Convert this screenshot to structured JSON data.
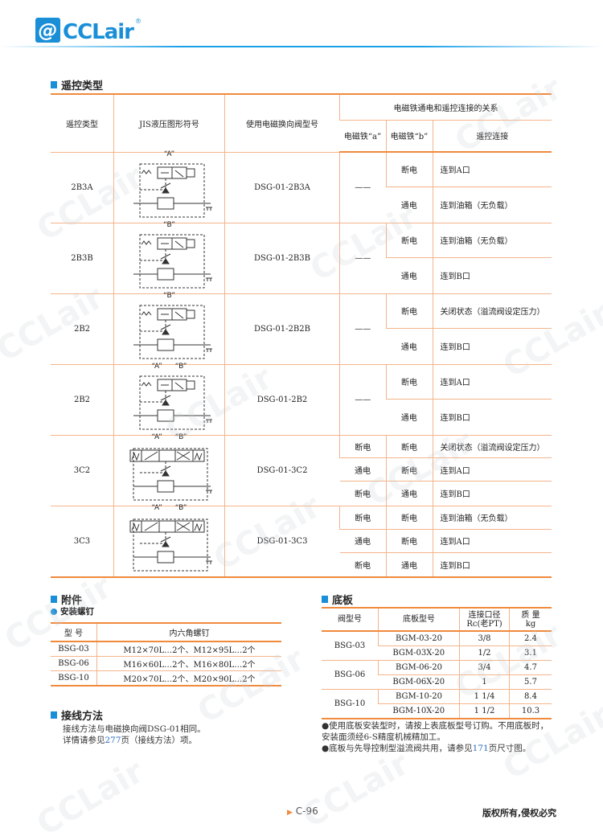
{
  "brand": {
    "name": "CCLair",
    "mark": "@",
    "reg": "®"
  },
  "watermark": "CCLair",
  "section_remote": {
    "title": "遥控类型",
    "headers": {
      "type": "遥控类型",
      "symbol": "JIS液压图形符号",
      "valve": "使用电磁换向阀型号",
      "relation": "电磁铁通电和遥控连接的关系",
      "sol_a": "电磁铁“a”",
      "sol_b": "电磁铁“b”",
      "conn": "遥控连接"
    },
    "groups": [
      {
        "type": "2B3A",
        "valve": "DSG-01-2B3A",
        "symbol": {
          "kind": "2pos",
          "labels": [
            "“A”"
          ]
        },
        "rows": [
          {
            "a": "——",
            "b": "断电",
            "conn": "连到A口"
          },
          {
            "a": "",
            "b": "通电",
            "conn": "连到油箱（无负载）"
          }
        ]
      },
      {
        "type": "2B3B",
        "valve": "DSG-01-2B3B",
        "symbol": {
          "kind": "2pos",
          "labels": [
            "“B”"
          ]
        },
        "rows": [
          {
            "a": "——",
            "b": "断电",
            "conn": "连到油箱（无负载）"
          },
          {
            "a": "",
            "b": "通电",
            "conn": "连到B口"
          }
        ]
      },
      {
        "type": "2B2",
        "valve": "DSG-01-2B2B",
        "symbol": {
          "kind": "2pos",
          "labels": [
            "“B”"
          ]
        },
        "rows": [
          {
            "a": "——",
            "b": "断电",
            "conn": "关闭状态（溢流阀设定压力）"
          },
          {
            "a": "",
            "b": "通电",
            "conn": "连到B口"
          }
        ]
      },
      {
        "type": "2B2",
        "valve": "DSG-01-2B2",
        "symbol": {
          "kind": "2pos",
          "labels": [
            "“A”",
            "“B”"
          ]
        },
        "rows": [
          {
            "a": "——",
            "b": "断电",
            "conn": "连到A口"
          },
          {
            "a": "",
            "b": "通电",
            "conn": "连到B口"
          }
        ]
      },
      {
        "type": "3C2",
        "valve": "DSG-01-3C2",
        "symbol": {
          "kind": "3pos",
          "labels": [
            "“A”",
            "“B”"
          ]
        },
        "rows": [
          {
            "a": "断电",
            "b": "断电",
            "conn": "关闭状态（溢流阀设定压力）"
          },
          {
            "a": "通电",
            "b": "断电",
            "conn": "连到A口"
          },
          {
            "a": "断电",
            "b": "通电",
            "conn": "连到B口"
          }
        ]
      },
      {
        "type": "3C3",
        "valve": "DSG-01-3C3",
        "symbol": {
          "kind": "3pos",
          "labels": [
            "“A”",
            "“B”"
          ]
        },
        "rows": [
          {
            "a": "断电",
            "b": "断电",
            "conn": "连到油箱（无负载）"
          },
          {
            "a": "通电",
            "b": "断电",
            "conn": "连到A口"
          },
          {
            "a": "断电",
            "b": "通电",
            "conn": "连到B口"
          }
        ]
      }
    ]
  },
  "accessories": {
    "title": "附件",
    "subtitle": "安装螺钉",
    "headers": [
      "型  号",
      "内六角螺钉"
    ],
    "rows": [
      [
        "BSG-03",
        "M12×70L…2个、M12×95L…2个"
      ],
      [
        "BSG-06",
        "M16×60L…2个、M16×80L…2个"
      ],
      [
        "BSG-10",
        "M20×70L…2个、M20×90L…2个"
      ]
    ]
  },
  "wiring": {
    "title": "接线方法",
    "line1": "接线方法与电磁换向阀DSG-01相同。",
    "line2_pre": "详情请参见",
    "line2_link": "277",
    "line2_post": "页（接线方法）项。"
  },
  "baseplate": {
    "title": "底板",
    "headers": {
      "valve": "阀型号",
      "plate": "底板型号",
      "port1": "连接口径",
      "port2": "Rc(老PT)",
      "mass1": "质  量",
      "mass2": "kg"
    },
    "groups": [
      {
        "valve": "BSG-03",
        "rows": [
          [
            "BGM-03-20",
            "3/8",
            "2.4"
          ],
          [
            "BGM-03X-20",
            "1/2",
            "3.1"
          ]
        ]
      },
      {
        "valve": "BSG-06",
        "rows": [
          [
            "BGM-06-20",
            "3/4",
            "4.7"
          ],
          [
            "BGM-06X-20",
            "1",
            "5.7"
          ]
        ]
      },
      {
        "valve": "BSG-10",
        "rows": [
          [
            "BGM-10-20",
            "1 1/4",
            "8.4"
          ],
          [
            "BGM-10X-20",
            "1 1/2",
            "10.3"
          ]
        ]
      }
    ],
    "note1": "●使用底板安装型时，请按上表底板型号订购。不用底板时，安装面须经6-S精度机械精加工。",
    "note2_pre": "●底板与先导控制型溢流阀共用，请参见",
    "note2_link": "171",
    "note2_post": "页尺寸图。"
  },
  "footer": {
    "page": "C-96",
    "copyright": "版权所有,侵权必究"
  },
  "colors": {
    "accent": "#1a8fd8",
    "rule": "#f08a3c",
    "link": "#2a6cc4"
  }
}
